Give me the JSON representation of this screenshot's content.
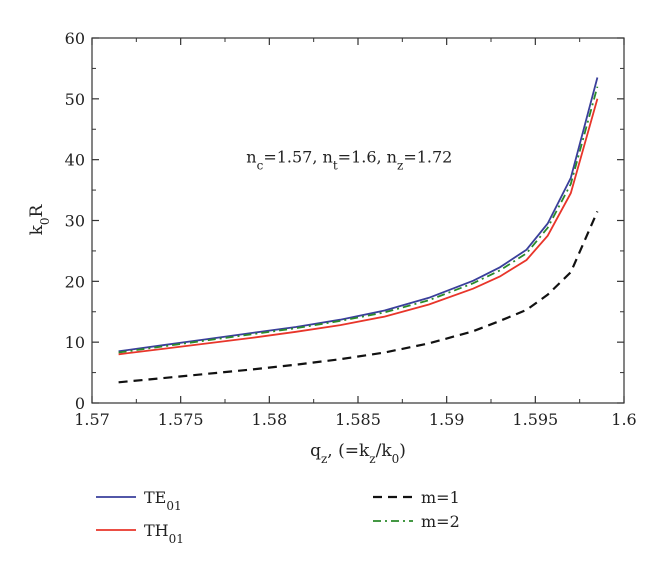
{
  "chart_data": {
    "type": "line",
    "xlabel": {
      "main": "q",
      "sub": "z",
      "rest": ", (=k",
      "sub2": "z",
      "rest2": "/k",
      "sub3": "0",
      "end": ")"
    },
    "ylabel": {
      "main": "k",
      "sub": "0",
      "rest": "R"
    },
    "xlim": [
      1.57,
      1.6
    ],
    "ylim": [
      0,
      60
    ],
    "xticks": [
      1.57,
      1.575,
      1.58,
      1.585,
      1.59,
      1.595,
      1.6
    ],
    "xtick_labels": [
      "1.57",
      "1.575",
      "1.58",
      "1.585",
      "1.59",
      "1.595",
      "1.6"
    ],
    "yticks": [
      0,
      10,
      20,
      30,
      40,
      50,
      60
    ],
    "ytick_labels": [
      "0",
      "10",
      "20",
      "30",
      "40",
      "50",
      "60"
    ],
    "annotation": {
      "parts": [
        {
          "t": "n"
        },
        {
          "t": "c",
          "sub": true
        },
        {
          "t": "=1.57, n"
        },
        {
          "t": "t",
          "sub": true
        },
        {
          "t": "=1.6, n"
        },
        {
          "t": "z",
          "sub": true
        },
        {
          "t": "=1.72"
        }
      ],
      "x": 1.5787,
      "y": 39.5
    },
    "series": [
      {
        "name": "TE",
        "name_sub": "01",
        "color": "#3a3f9b",
        "dash": "solid",
        "x": [
          1.5715,
          1.574,
          1.5765,
          1.579,
          1.5815,
          1.584,
          1.5865,
          1.589,
          1.5915,
          1.593,
          1.5945,
          1.5957,
          1.597,
          1.5985
        ],
        "values": [
          8.5,
          9.5,
          10.5,
          11.5,
          12.5,
          13.7,
          15.2,
          17.3,
          20.1,
          22.3,
          25.2,
          29.5,
          37.0,
          53.5
        ]
      },
      {
        "name": "TH",
        "name_sub": "01",
        "color": "#e8352a",
        "dash": "solid",
        "x": [
          1.5715,
          1.574,
          1.5765,
          1.579,
          1.5815,
          1.584,
          1.5865,
          1.589,
          1.5915,
          1.593,
          1.5945,
          1.5957,
          1.597,
          1.5985
        ],
        "values": [
          8.0,
          8.9,
          9.8,
          10.7,
          11.7,
          12.8,
          14.2,
          16.2,
          18.8,
          20.8,
          23.5,
          27.5,
          34.5,
          50.0
        ]
      },
      {
        "name": "m=1",
        "color": "#111111",
        "dash": "dashed",
        "x": [
          1.5715,
          1.574,
          1.5765,
          1.579,
          1.5815,
          1.584,
          1.5865,
          1.589,
          1.5915,
          1.593,
          1.5945,
          1.5957,
          1.597,
          1.5985
        ],
        "values": [
          3.4,
          4.1,
          4.8,
          5.5,
          6.3,
          7.2,
          8.3,
          9.8,
          11.8,
          13.5,
          15.3,
          17.8,
          21.5,
          31.5
        ]
      },
      {
        "name": "m=2",
        "color": "#2a8a2a",
        "dash": "dashdot",
        "x": [
          1.5715,
          1.574,
          1.5765,
          1.579,
          1.5815,
          1.584,
          1.5865,
          1.589,
          1.5915,
          1.593,
          1.5945,
          1.5957,
          1.597,
          1.5985
        ],
        "values": [
          8.3,
          9.3,
          10.3,
          11.3,
          12.3,
          13.5,
          14.9,
          16.9,
          19.7,
          21.8,
          24.6,
          28.8,
          36.0,
          52.0
        ]
      }
    ],
    "legend": {
      "placement": "below"
    }
  }
}
